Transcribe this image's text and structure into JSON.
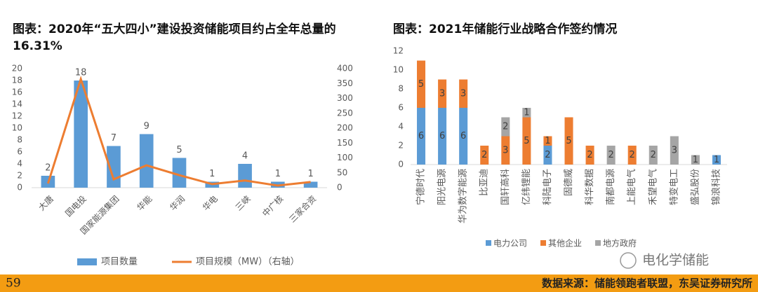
{
  "chart_data": [
    {
      "type": "bar_line",
      "title": "图表：2020年“五大四小”建设投资储能项目约占全年总量的16.31%",
      "categories": [
        "大唐",
        "国电投",
        "国家能源集团",
        "华能",
        "华润",
        "华电",
        "三峡",
        "中广核",
        "三家合资"
      ],
      "series": [
        {
          "name": "项目数量",
          "color": "#5b9bd5",
          "kind": "bar",
          "values": [
            2,
            18,
            7,
            9,
            5,
            1,
            4,
            1,
            1
          ]
        },
        {
          "name": "项目规模（MW）（右轴）",
          "color": "#ed7d31",
          "kind": "line",
          "axis": "y2",
          "values": [
            14,
            365,
            28,
            75,
            42,
            12,
            24,
            7,
            19
          ]
        }
      ],
      "ylim": [
        0,
        20
      ],
      "yticks": [
        0,
        2,
        4,
        6,
        8,
        10,
        12,
        14,
        16,
        18,
        20
      ],
      "y2lim": [
        0,
        400
      ],
      "y2ticks": [
        0,
        50,
        100,
        150,
        200,
        250,
        300,
        350,
        400
      ],
      "legend": "bottom"
    },
    {
      "type": "stacked_bar",
      "title": "图表：2021年储能行业战略合作签约情况",
      "categories": [
        "宁德时代",
        "阳光电源",
        "华为数字能源",
        "比亚迪",
        "国轩高科",
        "亿纬锂能",
        "科陆电子",
        "固德威",
        "科华数据",
        "南都电源",
        "上能电气",
        "禾望电气",
        "特变电工",
        "盛弘股份",
        "锦浪科技"
      ],
      "series": [
        {
          "name": "电力公司",
          "color": "#5b9bd5",
          "values": [
            6,
            6,
            6,
            null,
            null,
            null,
            2,
            null,
            null,
            null,
            null,
            null,
            null,
            null,
            1
          ]
        },
        {
          "name": "其他企业",
          "color": "#ed7d31",
          "values": [
            5,
            3,
            3,
            2,
            3,
            5,
            1,
            5,
            2,
            null,
            2,
            null,
            null,
            null,
            null
          ]
        },
        {
          "name": "地方政府",
          "color": "#a5a5a5",
          "values": [
            null,
            null,
            null,
            null,
            2,
            1,
            null,
            null,
            null,
            2,
            null,
            2,
            3,
            1,
            null
          ]
        }
      ],
      "ylim": [
        0,
        12
      ],
      "yticks": [
        0,
        2,
        4,
        6,
        8,
        10,
        12
      ],
      "legend": "bottom"
    }
  ],
  "page_number": "59",
  "source": "数据来源：储能领跑者联盟，东吴证券研究所",
  "watermark": "电化学储能"
}
